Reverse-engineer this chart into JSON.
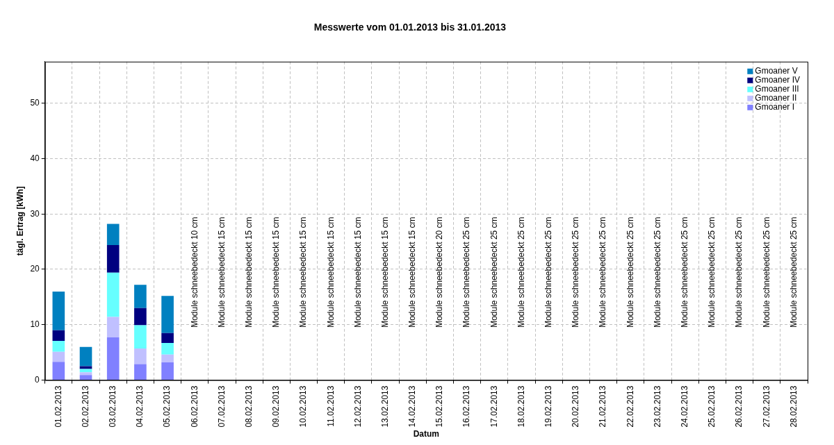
{
  "chart_data": {
    "type": "bar",
    "title": "Messwerte vom 01.01.2013 bis 31.01.2013",
    "xlabel": "Datum",
    "ylabel": "tägl. Ertrag [kWh]",
    "categories": [
      "01.02.2013",
      "02.02.2013",
      "03.02.2013",
      "04.02.2013",
      "05.02.2013",
      "06.02.2013",
      "07.02.2013",
      "08.02.2013",
      "09.02.2013",
      "10.02.2013",
      "11.02.2013",
      "12.02.2013",
      "13.02.2013",
      "14.02.2013",
      "15.02.2013",
      "16.02.2013",
      "17.02.2013",
      "18.02.2013",
      "19.02.2013",
      "20.02.2013",
      "21.02.2013",
      "22.02.2013",
      "23.02.2013",
      "24.02.2013",
      "25.02.2013",
      "26.02.2013",
      "27.02.2013",
      "28.02.2013"
    ],
    "stacked": true,
    "series": [
      {
        "name": "Gmoaner I",
        "color": "#8080ff",
        "values": [
          3.3,
          0.9,
          7.7,
          2.9,
          3.2,
          null,
          null,
          null,
          null,
          null,
          null,
          null,
          null,
          null,
          null,
          null,
          null,
          null,
          null,
          null,
          null,
          null,
          null,
          null,
          null,
          null,
          null,
          null
        ]
      },
      {
        "name": "Gmoaner II",
        "color": "#c0c0ff",
        "values": [
          1.8,
          0.5,
          3.7,
          2.8,
          1.4,
          null,
          null,
          null,
          null,
          null,
          null,
          null,
          null,
          null,
          null,
          null,
          null,
          null,
          null,
          null,
          null,
          null,
          null,
          null,
          null,
          null,
          null,
          null
        ]
      },
      {
        "name": "Gmoaner III",
        "color": "#66ffff",
        "values": [
          2.0,
          0.6,
          8.0,
          4.2,
          2.1,
          null,
          null,
          null,
          null,
          null,
          null,
          null,
          null,
          null,
          null,
          null,
          null,
          null,
          null,
          null,
          null,
          null,
          null,
          null,
          null,
          null,
          null,
          null
        ]
      },
      {
        "name": "Gmoaner IV",
        "color": "#000080",
        "values": [
          1.9,
          0.5,
          5.0,
          3.1,
          1.8,
          null,
          null,
          null,
          null,
          null,
          null,
          null,
          null,
          null,
          null,
          null,
          null,
          null,
          null,
          null,
          null,
          null,
          null,
          null,
          null,
          null,
          null,
          null
        ]
      },
      {
        "name": "Gmoaner V",
        "color": "#0080c0",
        "values": [
          7.0,
          3.5,
          3.8,
          4.2,
          6.7,
          null,
          null,
          null,
          null,
          null,
          null,
          null,
          null,
          null,
          null,
          null,
          null,
          null,
          null,
          null,
          null,
          null,
          null,
          null,
          null,
          null,
          null,
          null
        ]
      }
    ],
    "ylim": [
      0,
      57.5
    ],
    "yticks": [
      0,
      10,
      20,
      30,
      40,
      50
    ],
    "grid": true,
    "legend": "top right",
    "annotations": [
      "Module schneebedeckt 10 cm",
      "Module schneebedeckt 15 cm",
      "Module schneebedeckt 15 cm",
      "Module schneebedeckt 15 cm",
      "Module schneebedeckt 15 cm",
      "Module schneebedeckt 15 cm",
      "Module schneebedeckt 15 cm",
      "Module schneebedeckt 15 cm",
      "Module schneebedeckt 15 cm",
      "Module schneebedeckt 20 cm",
      "Module schneebedeckt 25 cm",
      "Module schneebedeckt 25 cm",
      "Module schneebedeckt 25 cm",
      "Module schneebedeckt 25 cm",
      "Module schneebedeckt 25 cm",
      "Module schneebedeckt 25 cm",
      "Module schneebedeckt 25 cm",
      "Module schneebedeckt 25 cm",
      "Module schneebedeckt 25 cm",
      "Module schneebedeckt 25 cm",
      "Module schneebedeckt 25 cm",
      "Module schneebedeckt 25 cm",
      "Module schneebedeckt 25 cm"
    ]
  }
}
